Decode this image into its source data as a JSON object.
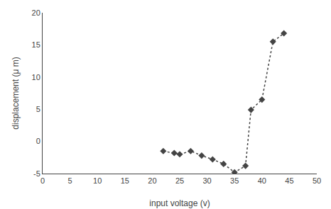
{
  "chart_data": {
    "type": "line",
    "x": [
      22,
      24,
      25,
      27,
      29,
      31,
      33,
      35,
      37,
      38,
      40,
      42,
      44
    ],
    "values": [
      -1.5,
      -1.8,
      -2.0,
      -1.5,
      -2.2,
      -2.8,
      -3.5,
      -4.8,
      -3.8,
      4.9,
      6.5,
      15.5,
      16.8
    ],
    "xlabel": "input voltage (v)",
    "ylabel": "displacement (μ m)",
    "xlim": [
      0,
      50
    ],
    "ylim": [
      -5,
      20
    ],
    "xticks": [
      0,
      5,
      10,
      15,
      20,
      25,
      30,
      35,
      40,
      45,
      50
    ],
    "yticks": [
      -5,
      0,
      5,
      10,
      15,
      20
    ],
    "color": "#444444",
    "marker": "diamond",
    "line_style": "dotted",
    "grid": false
  }
}
